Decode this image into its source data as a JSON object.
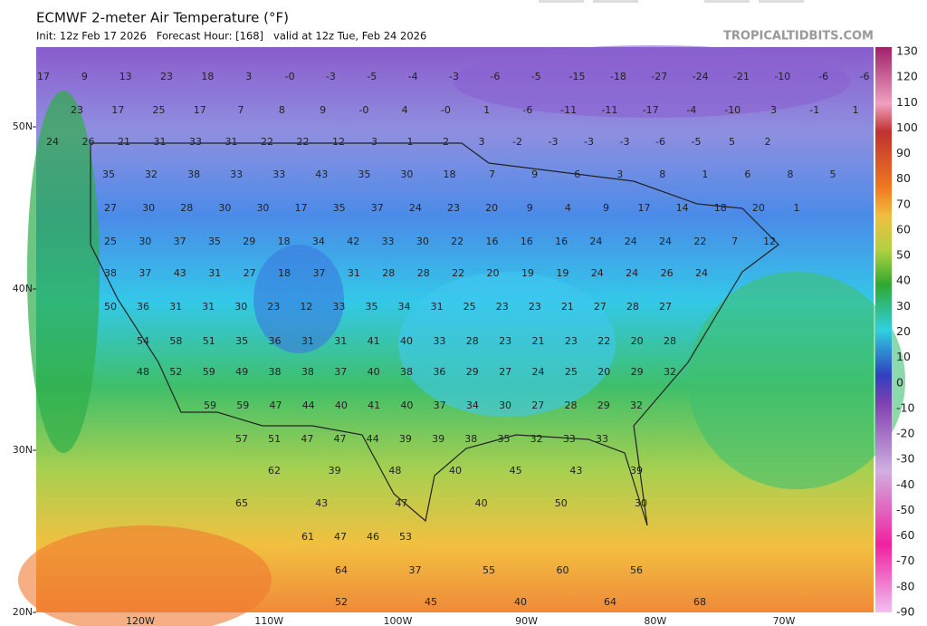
{
  "header": {
    "title": "ECMWF 2-meter Air Temperature (°F)",
    "subtitle": "Init: 12z Feb 17 2026   Forecast Hour: [168]   valid at 12z Tue, Feb 24 2026",
    "site": "TROPICALTIDBITS.COM"
  },
  "map": {
    "lat_labels": [
      "50N",
      "40N",
      "30N",
      "20N"
    ],
    "lon_labels": [
      "120W",
      "110W",
      "100W",
      "90W",
      "80W",
      "70W"
    ],
    "rows": [
      [
        "17",
        "9",
        "13",
        "23",
        "18",
        "3",
        "-0",
        "-3",
        "-5",
        "-4",
        "-3",
        "-6",
        "-5",
        "-15",
        "-18",
        "-27",
        "-24",
        "-21",
        "-10",
        "-6",
        "-6"
      ],
      [
        "23",
        "17",
        "25",
        "17",
        "7",
        "8",
        "9",
        "-0",
        "4",
        "-0",
        "1",
        "-6",
        "-11",
        "-11",
        "-17",
        "-4",
        "-10",
        "3",
        "-1",
        "1"
      ],
      [
        "24",
        "26",
        "21",
        "31",
        "33",
        "31",
        "22",
        "22",
        "12",
        "3",
        "1",
        "2",
        "3",
        "-2",
        "-3",
        "-3",
        "-3",
        "-6",
        "-5",
        "5",
        "2"
      ],
      [
        "35",
        "32",
        "38",
        "33",
        "33",
        "43",
        "35",
        "30",
        "18",
        "7",
        "9",
        "6",
        "3",
        "8",
        "1",
        "6",
        "8",
        "5"
      ],
      [
        "27",
        "30",
        "28",
        "30",
        "30",
        "17",
        "35",
        "37",
        "24",
        "23",
        "20",
        "9",
        "4",
        "9",
        "17",
        "14",
        "18",
        "20",
        "1"
      ],
      [
        "25",
        "30",
        "37",
        "35",
        "29",
        "18",
        "34",
        "42",
        "33",
        "30",
        "22",
        "16",
        "16",
        "16",
        "24",
        "24",
        "24",
        "22",
        "7",
        "12"
      ],
      [
        "38",
        "37",
        "43",
        "31",
        "27",
        "18",
        "37",
        "31",
        "28",
        "28",
        "22",
        "20",
        "19",
        "19",
        "24",
        "24",
        "26",
        "24"
      ],
      [
        "50",
        "36",
        "31",
        "31",
        "30",
        "23",
        "12",
        "33",
        "35",
        "34",
        "31",
        "25",
        "23",
        "23",
        "21",
        "27",
        "28",
        "27"
      ],
      [
        "54",
        "58",
        "51",
        "35",
        "36",
        "31",
        "31",
        "41",
        "40",
        "33",
        "28",
        "23",
        "21",
        "23",
        "22",
        "20",
        "28"
      ],
      [
        "48",
        "52",
        "59",
        "49",
        "38",
        "38",
        "37",
        "40",
        "38",
        "36",
        "29",
        "27",
        "24",
        "25",
        "20",
        "29",
        "32"
      ],
      [
        "59",
        "59",
        "47",
        "44",
        "40",
        "41",
        "40",
        "37",
        "34",
        "30",
        "27",
        "28",
        "29",
        "32"
      ],
      [
        "57",
        "51",
        "47",
        "47",
        "44",
        "39",
        "39",
        "38",
        "35",
        "32",
        "33",
        "33"
      ],
      [
        "62",
        "39",
        "48",
        "40",
        "45",
        "43",
        "39"
      ],
      [
        "65",
        "43",
        "47",
        "40",
        "50",
        "30"
      ],
      [
        "61",
        "47",
        "46",
        "53"
      ],
      [
        "64",
        "37",
        "55",
        "60",
        "56"
      ],
      [
        "52",
        "45",
        "40",
        "64",
        "68"
      ]
    ]
  },
  "colorbar": {
    "labels": [
      130,
      120,
      110,
      100,
      90,
      80,
      70,
      60,
      50,
      40,
      30,
      20,
      10,
      0,
      -10,
      -20,
      -30,
      -40,
      -50,
      -60,
      -70,
      -80,
      -90
    ]
  }
}
